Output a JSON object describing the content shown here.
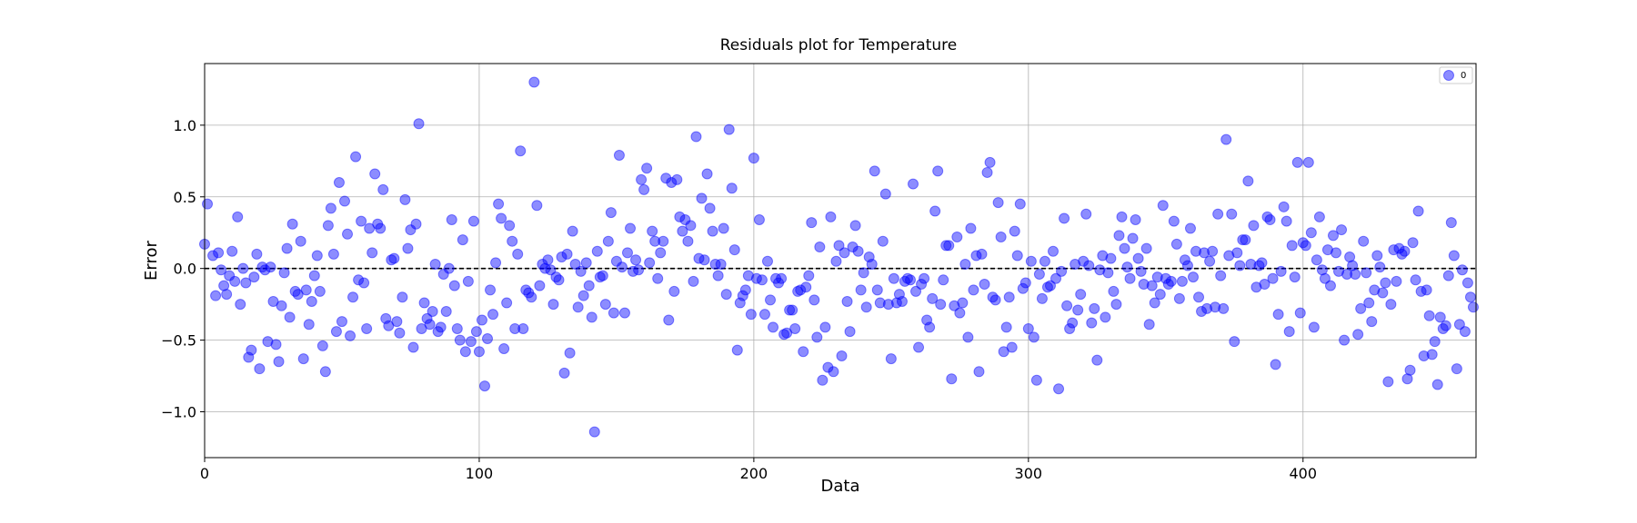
{
  "chart_data": {
    "type": "scatter",
    "title": "Residuals plot for Temperature",
    "xlabel": "Data",
    "ylabel": "Error",
    "xlim": [
      0,
      463
    ],
    "ylim": [
      -1.32,
      1.43
    ],
    "xticks": [
      0,
      100,
      200,
      300,
      400
    ],
    "yticks": [
      -1.0,
      -0.5,
      0.0,
      0.5,
      1.0
    ],
    "ytick_labels": [
      "−1.0",
      "−0.5",
      "0.0",
      "0.5",
      "1.0"
    ],
    "grid": true,
    "reference_line": {
      "y": 0.0,
      "style": "dashed",
      "color": "#000000"
    },
    "legend": {
      "position": "top-right",
      "entries": [
        "0"
      ]
    },
    "series": [
      {
        "name": "0",
        "color": "#0000ff",
        "alpha": 0.45,
        "x": [
          0,
          1,
          3,
          4,
          5,
          6,
          7,
          8,
          9,
          10,
          11,
          12,
          13,
          14,
          15,
          16,
          17,
          18,
          19,
          20,
          21,
          22,
          23,
          24,
          25,
          26,
          27,
          28,
          29,
          30,
          31,
          32,
          33,
          34,
          35,
          36,
          37,
          38,
          39,
          40,
          41,
          42,
          43,
          44,
          45,
          46,
          47,
          48,
          49,
          50,
          51,
          52,
          53,
          54,
          55,
          56,
          57,
          58,
          59,
          60,
          61,
          62,
          63,
          64,
          65,
          66,
          67,
          68,
          69,
          70,
          71,
          72,
          73,
          74,
          75,
          76,
          77,
          78,
          79,
          80,
          81,
          82,
          83,
          84,
          85,
          86,
          87,
          88,
          89,
          90,
          91,
          92,
          93,
          94,
          95,
          96,
          97,
          98,
          99,
          100,
          101,
          102,
          103,
          104,
          105,
          106,
          107,
          108,
          109,
          110,
          111,
          112,
          113,
          114,
          115,
          116,
          117,
          118,
          119,
          120,
          121,
          122,
          123,
          124,
          125,
          126,
          127,
          128,
          129,
          130,
          131,
          132,
          133,
          134,
          135,
          136,
          137,
          138,
          139,
          140,
          141,
          142,
          143,
          144,
          145,
          146,
          147,
          148,
          149,
          150,
          151,
          152,
          153,
          154,
          155,
          156,
          157,
          158,
          159,
          160,
          161,
          162,
          163,
          164,
          165,
          166,
          167,
          168,
          169,
          170,
          171,
          172,
          173,
          174,
          175,
          176,
          177,
          178,
          179,
          180,
          181,
          182,
          183,
          184,
          185,
          186,
          187,
          188,
          189,
          190,
          191,
          192,
          193,
          194,
          195,
          196,
          197,
          198,
          199,
          200,
          201,
          202,
          203,
          204,
          205,
          206,
          207,
          208,
          209,
          210,
          211,
          212,
          213,
          214,
          215,
          216,
          217,
          218,
          219,
          220,
          221,
          222,
          223,
          224,
          225,
          226,
          227,
          228,
          229,
          230,
          231,
          232,
          233,
          234,
          235,
          236,
          237,
          238,
          239,
          240,
          241,
          242,
          243,
          244,
          245,
          246,
          247,
          248,
          249,
          250,
          251,
          252,
          253,
          254,
          255,
          256,
          257,
          258,
          259,
          260,
          261,
          262,
          263,
          264,
          265,
          266,
          267,
          268,
          269,
          270,
          271,
          272,
          273,
          274,
          275,
          276,
          277,
          278,
          279,
          280,
          281,
          282,
          283,
          284,
          285,
          286,
          287,
          288,
          289,
          290,
          291,
          292,
          293,
          294,
          295,
          296,
          297,
          298,
          299,
          300,
          301,
          302,
          303,
          304,
          305,
          306,
          307,
          308,
          309,
          310,
          311,
          312,
          313,
          314,
          315,
          316,
          317,
          318,
          319,
          320,
          321,
          322,
          323,
          324,
          325,
          326,
          327,
          328,
          329,
          330,
          331,
          332,
          333,
          334,
          335,
          336,
          337,
          338,
          339,
          340,
          341,
          342,
          343,
          344,
          345,
          346,
          347,
          348,
          349,
          350,
          351,
          352,
          353,
          354,
          355,
          356,
          357,
          358,
          359,
          360,
          361,
          362,
          363,
          364,
          365,
          366,
          367,
          368,
          369,
          370,
          371,
          372,
          373,
          374,
          375,
          376,
          377,
          378,
          379,
          380,
          381,
          382,
          383,
          384,
          385,
          386,
          387,
          388,
          389,
          390,
          391,
          392,
          393,
          394,
          395,
          396,
          397,
          398,
          399,
          400,
          401,
          402,
          403,
          404,
          405,
          406,
          407,
          408,
          409,
          410,
          411,
          412,
          413,
          414,
          415,
          416,
          417,
          418,
          419,
          420,
          421,
          422,
          423,
          424,
          425,
          426,
          427,
          428,
          429,
          430,
          431,
          432,
          433,
          434,
          435,
          436,
          437,
          438,
          439,
          440,
          441,
          442,
          443,
          444,
          445,
          446,
          447,
          448,
          449,
          450,
          451,
          452,
          453,
          454,
          455,
          456,
          457,
          458,
          459,
          460,
          461,
          462
        ],
        "y": [
          0.17,
          0.45,
          0.09,
          -0.19,
          0.11,
          -0.01,
          -0.12,
          -0.18,
          -0.05,
          0.12,
          -0.09,
          0.36,
          -0.25,
          0.0,
          -0.1,
          -0.62,
          -0.57,
          -0.06,
          0.1,
          -0.7,
          0.01,
          -0.01,
          -0.51,
          0.01,
          -0.23,
          -0.53,
          -0.65,
          -0.26,
          -0.03,
          0.14,
          -0.34,
          0.31,
          -0.16,
          -0.18,
          0.19,
          -0.63,
          -0.15,
          -0.39,
          -0.23,
          -0.05,
          0.09,
          -0.16,
          -0.54,
          -0.72,
          0.3,
          0.42,
          0.1,
          -0.44,
          0.6,
          -0.37,
          0.47,
          0.24,
          -0.47,
          -0.2,
          0.78,
          -0.08,
          0.33,
          -0.1,
          -0.42,
          0.28,
          0.11,
          0.66,
          0.31,
          0.28,
          0.55,
          -0.35,
          -0.4,
          0.06,
          0.07,
          -0.37,
          -0.45,
          -0.2,
          0.48,
          0.14,
          0.27,
          -0.55,
          0.31,
          1.01,
          -0.42,
          -0.24,
          -0.35,
          -0.39,
          -0.3,
          0.03,
          -0.44,
          -0.41,
          -0.04,
          -0.3,
          0.0,
          0.34,
          -0.12,
          -0.42,
          -0.5,
          0.2,
          -0.58,
          -0.09,
          -0.51,
          0.33,
          -0.44,
          -0.58,
          -0.36,
          -0.82,
          -0.49,
          -0.15,
          -0.32,
          0.04,
          0.45,
          0.35,
          -0.56,
          -0.24,
          0.3,
          0.19,
          -0.42,
          0.1,
          0.82,
          -0.42,
          -0.15,
          -0.17,
          -0.2,
          1.3,
          0.44,
          -0.12,
          0.03,
          0.0,
          0.06,
          -0.01,
          -0.25,
          -0.06,
          -0.08,
          0.08,
          -0.73,
          0.1,
          -0.59,
          0.26,
          0.03,
          -0.27,
          -0.02,
          -0.19,
          0.04,
          -0.12,
          -0.34,
          -1.14,
          0.12,
          -0.06,
          -0.05,
          -0.25,
          0.19,
          0.39,
          -0.31,
          0.05,
          0.79,
          0.01,
          -0.31,
          0.11,
          0.28,
          -0.02,
          0.06,
          -0.01,
          0.62,
          0.55,
          0.7,
          0.04,
          0.26,
          0.19,
          -0.07,
          0.11,
          0.19,
          0.63,
          -0.36,
          0.6,
          -0.16,
          0.62,
          0.36,
          0.26,
          0.34,
          0.19,
          0.3,
          -0.09,
          0.92,
          0.07,
          0.49,
          0.06,
          0.66,
          0.42,
          0.26,
          0.03,
          -0.05,
          0.03,
          0.28,
          -0.18,
          0.97,
          0.56,
          0.13,
          -0.57,
          -0.24,
          -0.19,
          -0.15,
          -0.05,
          -0.32,
          0.77,
          -0.07,
          0.34,
          -0.08,
          -0.32,
          0.05,
          -0.22,
          -0.41,
          -0.07,
          -0.1,
          -0.07,
          -0.46,
          -0.45,
          -0.29,
          -0.29,
          -0.42,
          -0.16,
          -0.15,
          -0.58,
          -0.13,
          -0.05,
          0.32,
          -0.22,
          -0.48,
          0.15,
          -0.78,
          -0.41,
          -0.69,
          0.36,
          -0.72,
          0.05,
          0.16,
          -0.61,
          0.11,
          -0.23,
          -0.44,
          0.15,
          0.3,
          0.12,
          -0.15,
          -0.03,
          -0.27,
          0.08,
          0.03,
          0.68,
          -0.15,
          -0.24,
          0.19,
          0.52,
          -0.25,
          -0.63,
          -0.07,
          -0.24,
          -0.18,
          -0.23,
          -0.09,
          -0.07,
          -0.08,
          0.59,
          -0.16,
          -0.55,
          -0.11,
          -0.07,
          -0.36,
          -0.41,
          -0.21,
          0.4,
          0.68,
          -0.25,
          -0.08,
          0.16,
          0.16,
          -0.77,
          -0.26,
          0.22,
          -0.31,
          -0.24,
          0.03,
          -0.48,
          0.28,
          -0.15,
          0.09,
          -0.72,
          0.1,
          -0.11,
          0.67,
          0.74,
          -0.2,
          -0.22,
          0.46,
          0.22,
          -0.58,
          -0.41,
          -0.2,
          -0.55,
          0.26,
          0.09,
          0.45,
          -0.14,
          -0.1,
          -0.42,
          0.05,
          -0.48,
          -0.78,
          -0.04,
          -0.21,
          0.05,
          -0.13,
          -0.12,
          0.12,
          -0.07,
          -0.84,
          -0.02,
          0.35,
          -0.26,
          -0.42,
          -0.38,
          0.03,
          -0.29,
          -0.18,
          0.05,
          0.38,
          0.02,
          -0.38,
          -0.28,
          -0.64,
          -0.01,
          0.09,
          -0.34,
          -0.03,
          0.07,
          -0.16,
          -0.25,
          0.23,
          0.36,
          0.14,
          0.01,
          -0.07,
          0.21,
          0.34,
          0.07,
          -0.02,
          -0.11,
          0.14,
          -0.39,
          -0.12,
          -0.24,
          -0.06,
          -0.18,
          0.44,
          -0.07,
          -0.11,
          -0.09,
          0.33,
          0.17,
          -0.21,
          -0.09,
          0.06,
          0.02,
          0.28,
          -0.06,
          0.12,
          -0.2,
          -0.3,
          0.11,
          -0.28,
          0.05,
          0.12,
          -0.27,
          0.38,
          -0.05,
          -0.28,
          0.9,
          0.09,
          0.38,
          -0.51,
          0.11,
          0.02,
          0.2,
          0.2,
          0.61,
          0.03,
          0.3,
          -0.13,
          0.02,
          0.04,
          -0.11,
          0.36,
          0.34,
          -0.07,
          -0.67,
          -0.32,
          -0.02,
          0.43,
          0.33,
          -0.44,
          0.16,
          -0.06,
          0.74,
          -0.31,
          0.18,
          0.16,
          0.74,
          0.25,
          -0.41,
          0.06,
          0.36,
          -0.01,
          -0.07,
          0.13,
          -0.12,
          0.23,
          0.11,
          -0.02,
          0.27,
          -0.5,
          -0.04,
          0.08,
          0.02,
          -0.04,
          -0.46,
          -0.28,
          0.19,
          -0.03,
          -0.24,
          -0.37,
          -0.15,
          0.09,
          0.01,
          -0.17,
          -0.1,
          -0.79,
          -0.25,
          0.13,
          -0.09,
          0.14,
          0.1,
          0.12,
          -0.77,
          -0.71,
          0.18,
          -0.08,
          0.4,
          -0.16,
          -0.61,
          -0.15,
          -0.33,
          -0.6,
          -0.51,
          -0.81,
          -0.34,
          -0.42,
          -0.4,
          -0.05,
          0.32,
          0.09,
          -0.7,
          -0.39,
          -0.01,
          -0.44,
          -0.1,
          -0.2,
          -0.27
        ]
      }
    ]
  }
}
